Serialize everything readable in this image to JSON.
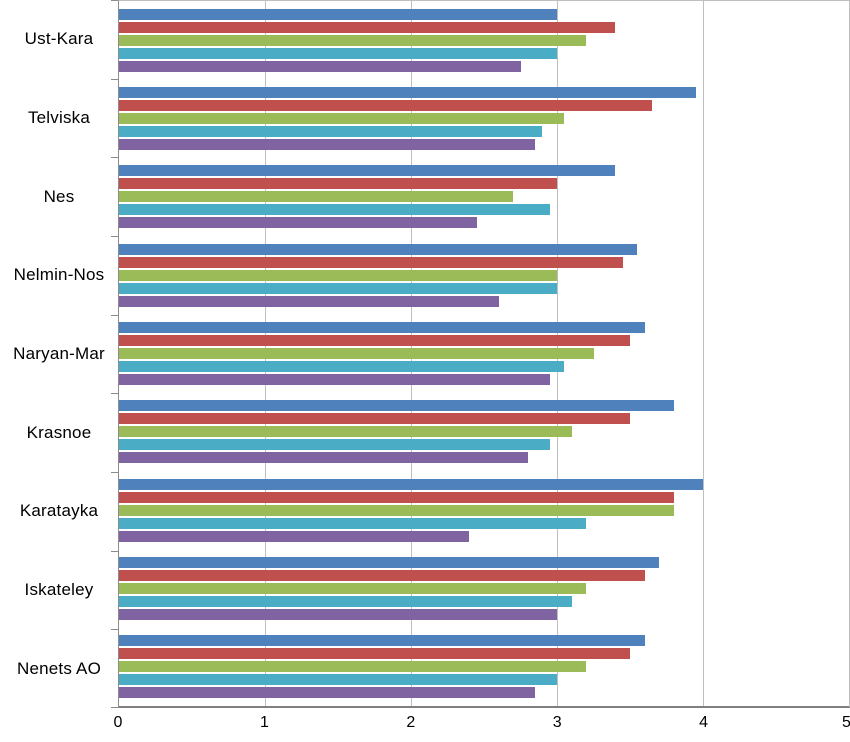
{
  "chart_data": {
    "type": "bar",
    "orientation": "horizontal",
    "title": "",
    "xlabel": "",
    "ylabel": "",
    "xlim": [
      0,
      5
    ],
    "x_ticks": [
      0,
      1,
      2,
      3,
      4,
      5
    ],
    "grid": "vertical",
    "legend": "none",
    "categories": [
      "Ust-Kara",
      "Telviska",
      "Nes",
      "Nelmin-Nos",
      "Naryan-Mar",
      "Krasnoe",
      "Karatayka",
      "Iskateley",
      "Nenets AO"
    ],
    "series": [
      {
        "name": "series-1-blue",
        "color": "#4f81bd",
        "values": [
          3.0,
          3.95,
          3.4,
          3.55,
          3.6,
          3.8,
          4.0,
          3.7,
          3.6
        ]
      },
      {
        "name": "series-2-red",
        "color": "#c0504d",
        "values": [
          3.4,
          3.65,
          3.0,
          3.45,
          3.5,
          3.5,
          3.8,
          3.6,
          3.5
        ]
      },
      {
        "name": "series-3-green",
        "color": "#9bbb59",
        "values": [
          3.2,
          3.05,
          2.7,
          3.0,
          3.25,
          3.1,
          3.8,
          3.2,
          3.2
        ]
      },
      {
        "name": "series-4-cyan",
        "color": "#4bacc6",
        "values": [
          3.0,
          2.9,
          2.95,
          3.0,
          3.05,
          2.95,
          3.2,
          3.1,
          3.0
        ]
      },
      {
        "name": "series-5-purple",
        "color": "#8064a2",
        "values": [
          2.75,
          2.85,
          2.45,
          2.6,
          2.95,
          2.8,
          2.4,
          3.0,
          2.85
        ]
      }
    ]
  }
}
